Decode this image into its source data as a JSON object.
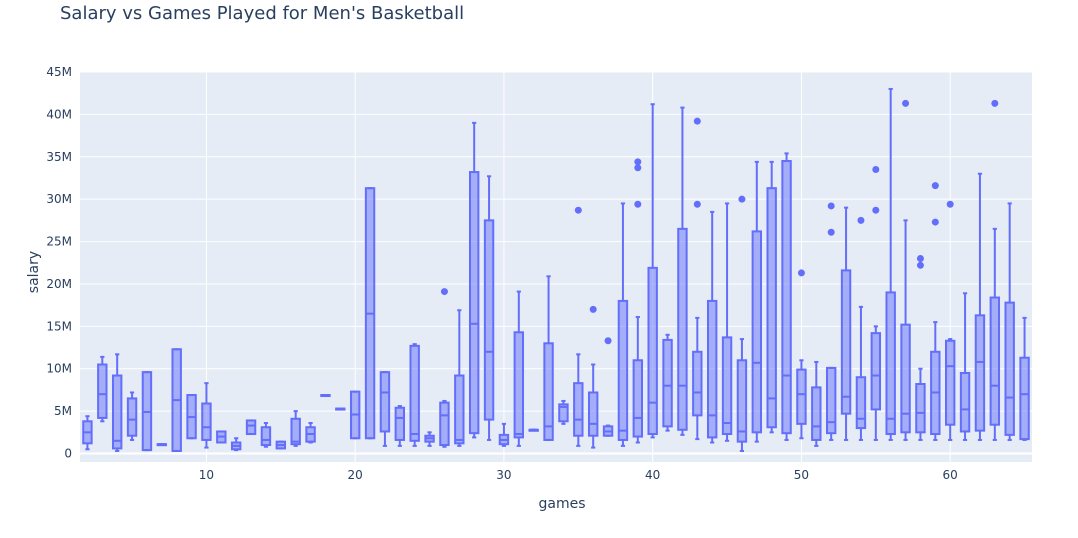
{
  "chart_data": {
    "type": "box",
    "title": "Salary vs Games Played for Men's Basketball",
    "xlabel": "games",
    "ylabel": "salary",
    "xlim": [
      1.5,
      65.5
    ],
    "ylim": [
      -1000000,
      45000000
    ],
    "xticks": [
      10,
      20,
      30,
      40,
      50,
      60
    ],
    "yticks": [
      0,
      5000000,
      10000000,
      15000000,
      20000000,
      25000000,
      30000000,
      35000000,
      40000000,
      45000000
    ],
    "ytick_labels": [
      "0",
      "5M",
      "10M",
      "15M",
      "20M",
      "25M",
      "30M",
      "35M",
      "40M",
      "45M"
    ],
    "grid": true,
    "colors": {
      "box": "#636efa",
      "box_fill": "rgba(99,110,250,0.5)",
      "plot_bg": "#e5ecf6",
      "text": "#2a3f5f"
    },
    "boxes": [
      {
        "x": 2,
        "min": 0.5,
        "q1": 1.2,
        "median": 2.5,
        "q3": 3.8,
        "max": 4.4,
        "outliers": []
      },
      {
        "x": 3,
        "min": 3.8,
        "q1": 4.2,
        "median": 7.0,
        "q3": 10.5,
        "max": 11.4,
        "outliers": []
      },
      {
        "x": 4,
        "min": 0.3,
        "q1": 0.6,
        "median": 1.5,
        "q3": 9.2,
        "max": 11.7,
        "outliers": []
      },
      {
        "x": 5,
        "min": 1.6,
        "q1": 2.1,
        "median": 4.0,
        "q3": 6.5,
        "max": 7.2,
        "outliers": []
      },
      {
        "x": 6,
        "min": 0.4,
        "q1": 0.4,
        "median": 4.9,
        "q3": 9.6,
        "max": 9.6,
        "outliers": []
      },
      {
        "x": 7,
        "min": 1.1,
        "q1": 1.1,
        "median": 1.1,
        "q3": 1.1,
        "max": 1.1,
        "outliers": []
      },
      {
        "x": 8,
        "min": 0.3,
        "q1": 0.3,
        "median": 6.3,
        "q3": 12.3,
        "max": 12.3,
        "outliers": []
      },
      {
        "x": 9,
        "min": 1.8,
        "q1": 1.8,
        "median": 4.3,
        "q3": 6.9,
        "max": 6.9,
        "outliers": []
      },
      {
        "x": 10,
        "min": 0.7,
        "q1": 1.6,
        "median": 3.1,
        "q3": 5.9,
        "max": 8.3,
        "outliers": []
      },
      {
        "x": 11,
        "min": 1.3,
        "q1": 1.3,
        "median": 2.0,
        "q3": 2.6,
        "max": 2.6,
        "outliers": []
      },
      {
        "x": 12,
        "min": 0.4,
        "q1": 0.5,
        "median": 0.9,
        "q3": 1.3,
        "max": 1.8,
        "outliers": []
      },
      {
        "x": 13,
        "min": 2.3,
        "q1": 2.3,
        "median": 3.3,
        "q3": 3.9,
        "max": 3.9,
        "outliers": []
      },
      {
        "x": 14,
        "min": 0.8,
        "q1": 1.0,
        "median": 1.6,
        "q3": 3.1,
        "max": 3.6,
        "outliers": []
      },
      {
        "x": 15,
        "min": 0.6,
        "q1": 0.6,
        "median": 1.0,
        "q3": 1.4,
        "max": 1.4,
        "outliers": []
      },
      {
        "x": 16,
        "min": 0.9,
        "q1": 1.1,
        "median": 1.4,
        "q3": 4.1,
        "max": 5.0,
        "outliers": []
      },
      {
        "x": 17,
        "min": 1.3,
        "q1": 1.4,
        "median": 2.3,
        "q3": 3.1,
        "max": 3.6,
        "outliers": []
      },
      {
        "x": 18,
        "min": 6.9,
        "q1": 6.9,
        "median": 6.9,
        "q3": 6.9,
        "max": 6.9,
        "outliers": []
      },
      {
        "x": 19,
        "min": 5.3,
        "q1": 5.3,
        "median": 5.3,
        "q3": 5.3,
        "max": 5.3,
        "outliers": []
      },
      {
        "x": 20,
        "min": 1.8,
        "q1": 1.8,
        "median": 4.6,
        "q3": 7.3,
        "max": 7.3,
        "outliers": []
      },
      {
        "x": 21,
        "min": 1.8,
        "q1": 1.8,
        "median": 16.5,
        "q3": 31.3,
        "max": 31.3,
        "outliers": []
      },
      {
        "x": 22,
        "min": 0.9,
        "q1": 2.6,
        "median": 7.2,
        "q3": 9.6,
        "max": 9.6,
        "outliers": []
      },
      {
        "x": 23,
        "min": 0.9,
        "q1": 1.6,
        "median": 4.2,
        "q3": 5.4,
        "max": 5.6,
        "outliers": []
      },
      {
        "x": 24,
        "min": 0.9,
        "q1": 1.5,
        "median": 2.3,
        "q3": 12.7,
        "max": 12.9,
        "outliers": []
      },
      {
        "x": 25,
        "min": 0.9,
        "q1": 1.4,
        "median": 1.8,
        "q3": 2.1,
        "max": 2.5,
        "outliers": []
      },
      {
        "x": 26,
        "min": 0.8,
        "q1": 1.0,
        "median": 4.5,
        "q3": 6.0,
        "max": 6.2,
        "outliers": [
          19.1
        ]
      },
      {
        "x": 27,
        "min": 0.9,
        "q1": 1.2,
        "median": 1.6,
        "q3": 9.2,
        "max": 16.9,
        "outliers": []
      },
      {
        "x": 28,
        "min": 1.9,
        "q1": 2.4,
        "median": 15.3,
        "q3": 33.2,
        "max": 39.0,
        "outliers": []
      },
      {
        "x": 29,
        "min": 1.6,
        "q1": 4.0,
        "median": 12.0,
        "q3": 27.5,
        "max": 32.7,
        "outliers": []
      },
      {
        "x": 30,
        "min": 0.9,
        "q1": 1.1,
        "median": 1.6,
        "q3": 2.2,
        "max": 3.5,
        "outliers": []
      },
      {
        "x": 31,
        "min": 0.9,
        "q1": 1.9,
        "median": 2.3,
        "q3": 14.3,
        "max": 19.1,
        "outliers": []
      },
      {
        "x": 32,
        "min": 2.8,
        "q1": 2.8,
        "median": 2.8,
        "q3": 2.8,
        "max": 2.8,
        "outliers": []
      },
      {
        "x": 33,
        "min": 1.6,
        "q1": 1.6,
        "median": 3.2,
        "q3": 13.0,
        "max": 20.9,
        "outliers": []
      },
      {
        "x": 34,
        "min": 3.5,
        "q1": 3.8,
        "median": 5.5,
        "q3": 5.8,
        "max": 6.2,
        "outliers": []
      },
      {
        "x": 35,
        "min": 0.9,
        "q1": 2.1,
        "median": 4.0,
        "q3": 8.3,
        "max": 11.7,
        "outliers": [
          28.7
        ]
      },
      {
        "x": 36,
        "min": 0.7,
        "q1": 2.1,
        "median": 3.5,
        "q3": 7.2,
        "max": 10.5,
        "outliers": [
          17.0
        ]
      },
      {
        "x": 37,
        "min": 2.1,
        "q1": 2.1,
        "median": 2.6,
        "q3": 3.2,
        "max": 3.3,
        "outliers": [
          13.3
        ]
      },
      {
        "x": 38,
        "min": 0.9,
        "q1": 1.6,
        "median": 2.7,
        "q3": 18.0,
        "max": 29.5,
        "outliers": []
      },
      {
        "x": 39,
        "min": 1.3,
        "q1": 2.0,
        "median": 4.2,
        "q3": 11.0,
        "max": 16.1,
        "outliers": [
          29.4,
          33.7,
          34.4
        ]
      },
      {
        "x": 40,
        "min": 1.9,
        "q1": 2.3,
        "median": 6.0,
        "q3": 21.9,
        "max": 41.2,
        "outliers": []
      },
      {
        "x": 41,
        "min": 2.7,
        "q1": 3.2,
        "median": 8.0,
        "q3": 13.4,
        "max": 14.0,
        "outliers": []
      },
      {
        "x": 42,
        "min": 2.2,
        "q1": 2.8,
        "median": 8.0,
        "q3": 26.5,
        "max": 40.8,
        "outliers": []
      },
      {
        "x": 43,
        "min": 1.7,
        "q1": 4.5,
        "median": 7.2,
        "q3": 12.0,
        "max": 16.0,
        "outliers": [
          29.4,
          39.2
        ]
      },
      {
        "x": 44,
        "min": 1.3,
        "q1": 1.9,
        "median": 4.5,
        "q3": 18.0,
        "max": 28.5,
        "outliers": []
      },
      {
        "x": 45,
        "min": 1.5,
        "q1": 2.3,
        "median": 3.6,
        "q3": 13.7,
        "max": 29.5,
        "outliers": []
      },
      {
        "x": 46,
        "min": 0.3,
        "q1": 1.4,
        "median": 2.6,
        "q3": 11.0,
        "max": 13.5,
        "outliers": [
          30.0
        ]
      },
      {
        "x": 47,
        "min": 1.4,
        "q1": 2.5,
        "median": 10.7,
        "q3": 26.2,
        "max": 34.4,
        "outliers": []
      },
      {
        "x": 48,
        "min": 2.5,
        "q1": 3.1,
        "median": 6.5,
        "q3": 31.3,
        "max": 34.4,
        "outliers": []
      },
      {
        "x": 49,
        "min": 1.6,
        "q1": 2.4,
        "median": 9.2,
        "q3": 34.5,
        "max": 35.4,
        "outliers": []
      },
      {
        "x": 50,
        "min": 1.8,
        "q1": 3.5,
        "median": 7.0,
        "q3": 9.9,
        "max": 11.0,
        "outliers": [
          21.3
        ]
      },
      {
        "x": 51,
        "min": 0.9,
        "q1": 1.6,
        "median": 3.2,
        "q3": 7.8,
        "max": 10.8,
        "outliers": []
      },
      {
        "x": 52,
        "min": 1.6,
        "q1": 2.4,
        "median": 3.7,
        "q3": 10.1,
        "max": 10.1,
        "outliers": [
          26.1,
          29.2
        ]
      },
      {
        "x": 53,
        "min": 1.6,
        "q1": 4.7,
        "median": 6.7,
        "q3": 21.6,
        "max": 29.0,
        "outliers": []
      },
      {
        "x": 54,
        "min": 1.6,
        "q1": 3.0,
        "median": 4.1,
        "q3": 9.0,
        "max": 17.3,
        "outliers": [
          27.5
        ]
      },
      {
        "x": 55,
        "min": 1.6,
        "q1": 5.2,
        "median": 9.2,
        "q3": 14.2,
        "max": 15.0,
        "outliers": [
          28.7,
          33.5
        ]
      },
      {
        "x": 56,
        "min": 1.6,
        "q1": 2.3,
        "median": 4.1,
        "q3": 19.0,
        "max": 43.0,
        "outliers": []
      },
      {
        "x": 57,
        "min": 1.6,
        "q1": 2.5,
        "median": 4.7,
        "q3": 15.2,
        "max": 27.5,
        "outliers": [
          41.3
        ]
      },
      {
        "x": 58,
        "min": 1.6,
        "q1": 2.5,
        "median": 4.8,
        "q3": 8.2,
        "max": 10.0,
        "outliers": [
          22.2,
          23.0
        ]
      },
      {
        "x": 59,
        "min": 1.6,
        "q1": 2.3,
        "median": 7.2,
        "q3": 12.0,
        "max": 15.5,
        "outliers": [
          27.3,
          31.6
        ]
      },
      {
        "x": 60,
        "min": 1.6,
        "q1": 3.4,
        "median": 10.3,
        "q3": 13.3,
        "max": 13.5,
        "outliers": [
          29.4
        ]
      },
      {
        "x": 61,
        "min": 1.6,
        "q1": 2.6,
        "median": 5.2,
        "q3": 9.5,
        "max": 18.9,
        "outliers": []
      },
      {
        "x": 62,
        "min": 1.6,
        "q1": 2.7,
        "median": 10.8,
        "q3": 16.3,
        "max": 33.0,
        "outliers": []
      },
      {
        "x": 63,
        "min": 1.6,
        "q1": 3.4,
        "median": 8.0,
        "q3": 18.4,
        "max": 26.5,
        "outliers": [
          41.3
        ]
      },
      {
        "x": 64,
        "min": 1.6,
        "q1": 2.2,
        "median": 6.6,
        "q3": 17.8,
        "max": 29.5,
        "outliers": []
      },
      {
        "x": 65,
        "min": 1.6,
        "q1": 1.7,
        "median": 7.0,
        "q3": 11.3,
        "max": 16.0,
        "outliers": []
      }
    ]
  }
}
